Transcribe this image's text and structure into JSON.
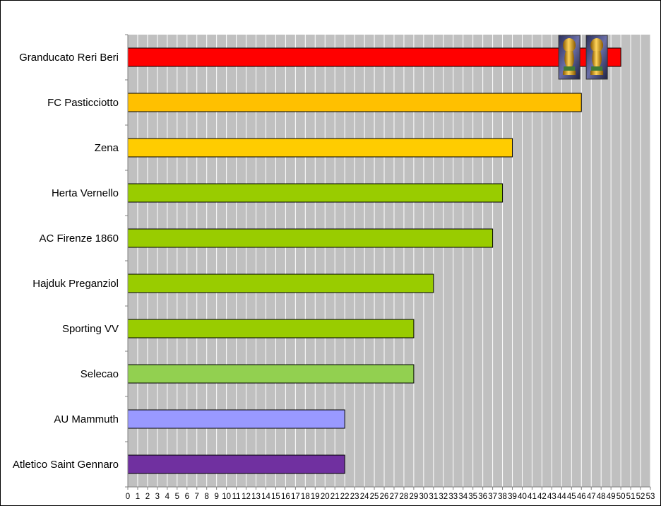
{
  "chart_data": {
    "type": "bar",
    "orientation": "horizontal",
    "categories": [
      "Granducato Reri Beri",
      "FC Pasticciotto",
      "Zena",
      "Herta Vernello",
      "AC Firenze 1860",
      "Hajduk Preganziol",
      "Sporting VV",
      "Selecao",
      "AU Mammuth",
      "Atletico Saint Gennaro"
    ],
    "values": [
      50,
      46,
      39,
      38,
      37,
      31,
      29,
      29,
      22,
      22
    ],
    "bar_colors": [
      "#ff0000",
      "#ffc000",
      "#ffcc00",
      "#99cc00",
      "#99cc00",
      "#99cc00",
      "#99cc00",
      "#92d050",
      "#9999ff",
      "#7030a0"
    ],
    "xlim": [
      0,
      53
    ],
    "xticks": [
      "0",
      "1",
      "2",
      "3",
      "4",
      "5",
      "6",
      "7",
      "8",
      "9",
      "10",
      "11",
      "12",
      "13",
      "14",
      "15",
      "16",
      "17",
      "18",
      "19",
      "20",
      "21",
      "22",
      "23",
      "24",
      "25",
      "26",
      "27",
      "28",
      "29",
      "30",
      "31",
      "32",
      "33",
      "34",
      "35",
      "36",
      "37",
      "38",
      "39",
      "40",
      "41",
      "42",
      "43",
      "44",
      "45",
      "46",
      "47",
      "48",
      "49",
      "50",
      "51",
      "52",
      "53"
    ],
    "grid": true,
    "plot_background": "#c0c0c0",
    "gridline_color": "#ffffff",
    "trophies": {
      "category": "Granducato Reri Beri",
      "count": 2,
      "icon": "world-cup-trophy-icon"
    },
    "title": "",
    "xlabel": "",
    "ylabel": ""
  }
}
